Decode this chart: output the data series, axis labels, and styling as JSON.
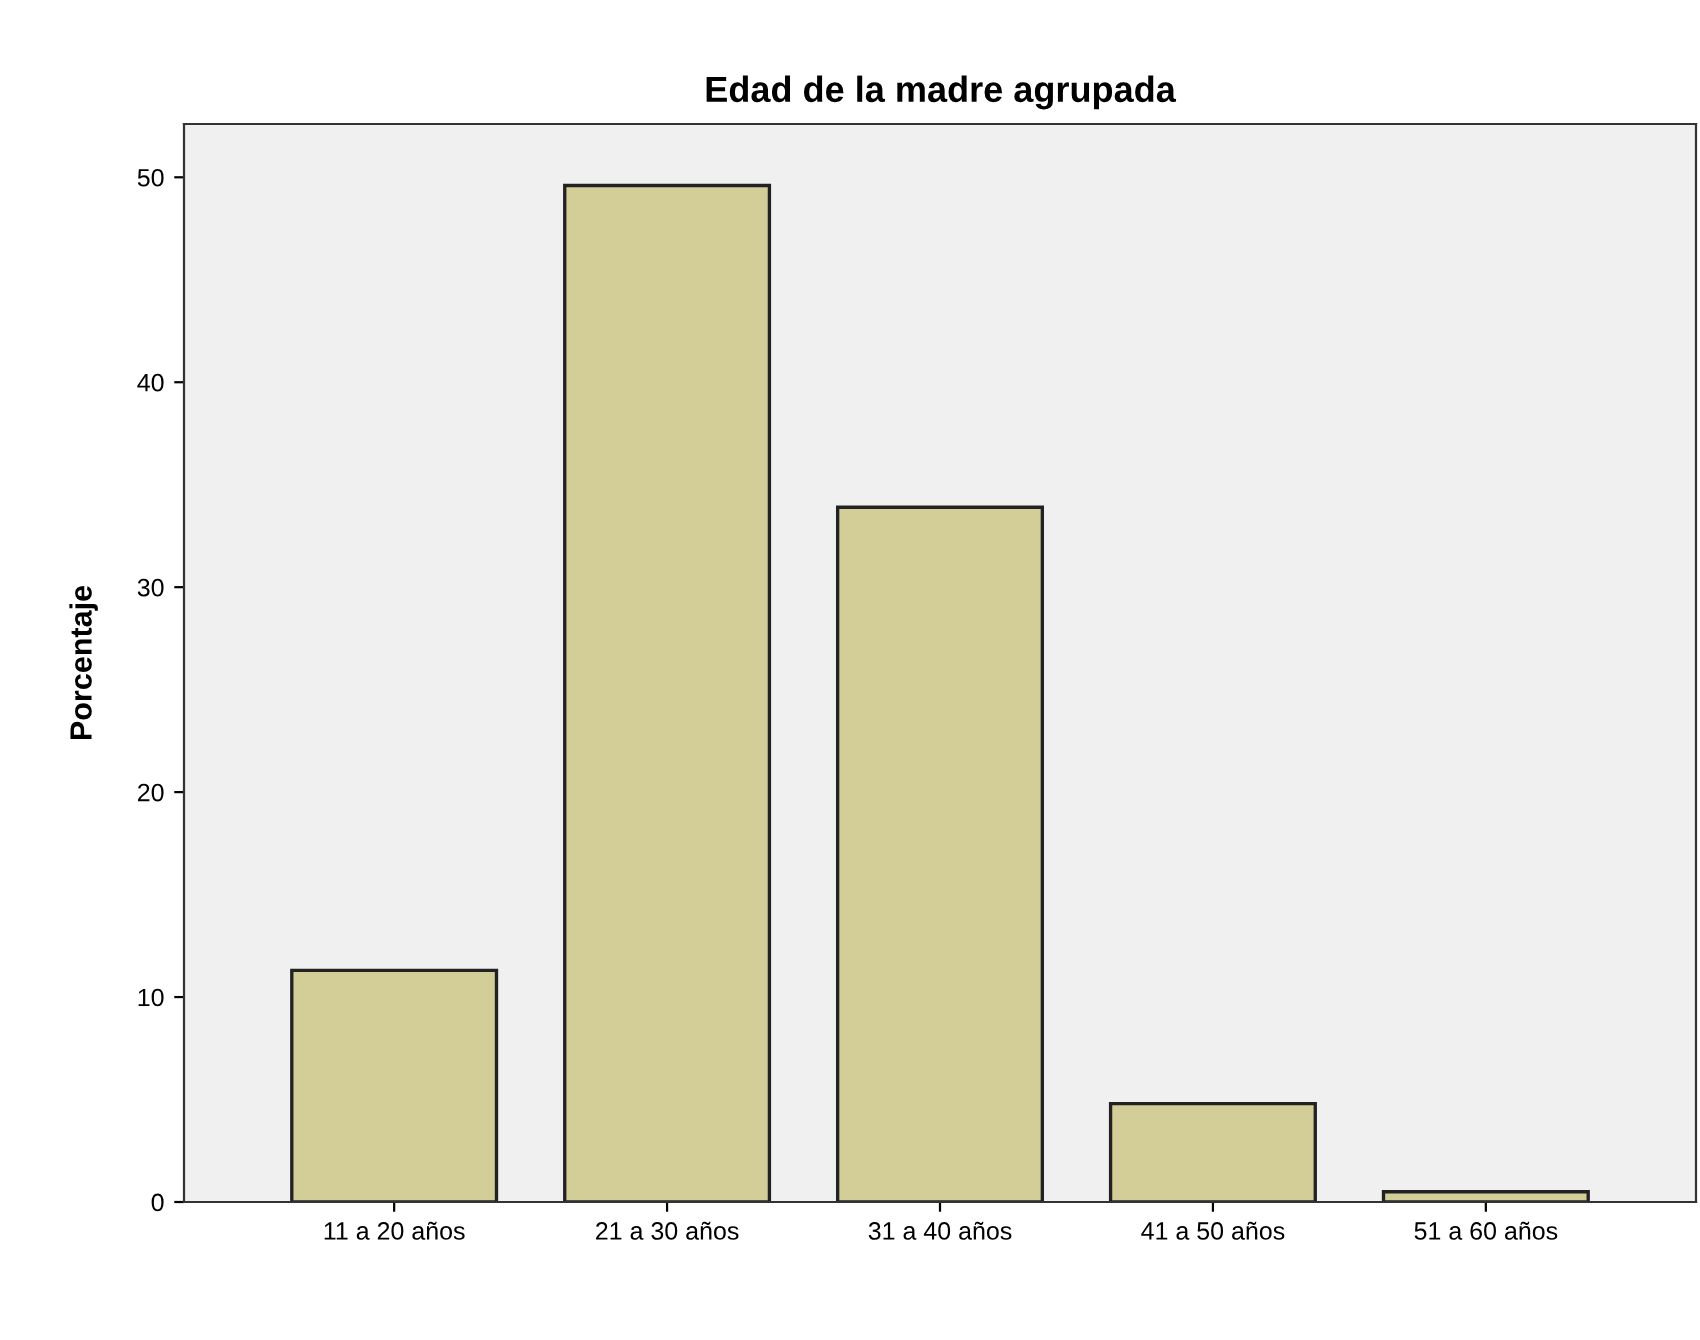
{
  "chart_data": {
    "type": "bar",
    "title": "Edad de la madre agrupada",
    "ylabel": "Porcentaje",
    "categories": [
      "11 a 20 años",
      "21 a 30 años",
      "31 a 40 años",
      "41 a 50 años",
      "51 a 60 años"
    ],
    "values": [
      11.3,
      49.6,
      33.9,
      4.8,
      0.5
    ],
    "color": "#d3cd97",
    "ylim": [
      0,
      52.6
    ],
    "yticks": [
      0,
      10,
      20,
      30,
      40,
      50
    ],
    "grid": false,
    "legend": false
  }
}
